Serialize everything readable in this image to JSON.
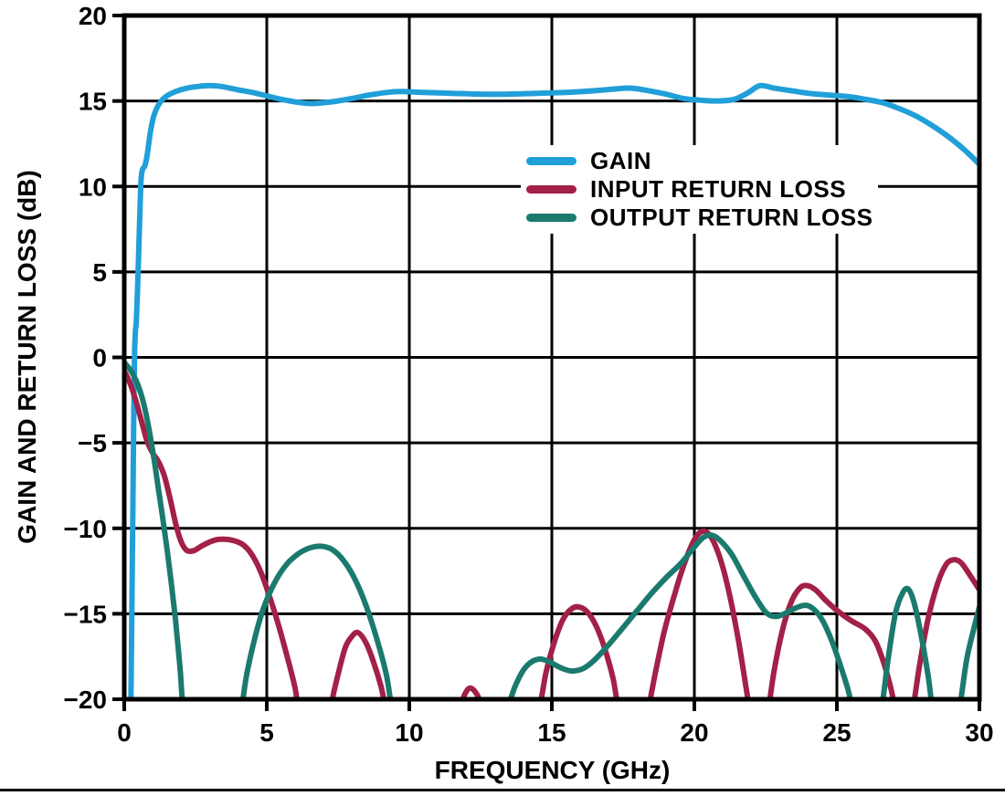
{
  "figure": {
    "background": "#ffffff",
    "footer_rule_color": "#000000",
    "text_color": "#000000"
  },
  "chart_data": {
    "type": "line",
    "title": "",
    "xlabel": "FREQUENCY (GHz)",
    "ylabel": "GAIN AND RETURN LOSS (dB)",
    "xlim": [
      0,
      30
    ],
    "ylim": [
      -20,
      20
    ],
    "xticks": [
      0,
      5,
      10,
      15,
      20,
      25,
      30
    ],
    "xtick_labels": [
      "0",
      "5",
      "10",
      "15",
      "20",
      "25",
      "30"
    ],
    "yticks": [
      20,
      15,
      10,
      5,
      0,
      -5,
      -10,
      -15,
      -20
    ],
    "ytick_labels": [
      "20",
      "15",
      "10",
      "5",
      "0",
      "−5",
      "−10",
      "−15",
      "−20"
    ],
    "grid": true,
    "grid_color": "#000000",
    "frame_color": "#000000",
    "legend_position": "upper-middle-inside",
    "series": [
      {
        "name": "GAIN",
        "color": "#219FD9",
        "points": [
          [
            0.22,
            -22
          ],
          [
            0.26,
            -16
          ],
          [
            0.3,
            -9
          ],
          [
            0.33,
            -4
          ],
          [
            0.36,
            0
          ],
          [
            0.39,
            1.5
          ],
          [
            0.42,
            2.0
          ],
          [
            0.45,
            3.2
          ],
          [
            0.5,
            5.8
          ],
          [
            0.55,
            8.6
          ],
          [
            0.59,
            10.4
          ],
          [
            0.64,
            11.0
          ],
          [
            0.72,
            11.2
          ],
          [
            0.8,
            11.8
          ],
          [
            0.92,
            13.2
          ],
          [
            1.05,
            14.2
          ],
          [
            1.25,
            14.9
          ],
          [
            1.5,
            15.3
          ],
          [
            1.8,
            15.55
          ],
          [
            2.2,
            15.75
          ],
          [
            2.6,
            15.85
          ],
          [
            3.0,
            15.9
          ],
          [
            3.4,
            15.85
          ],
          [
            4.0,
            15.65
          ],
          [
            4.5,
            15.5
          ],
          [
            5.0,
            15.3
          ],
          [
            5.5,
            15.1
          ],
          [
            6.0,
            14.95
          ],
          [
            6.5,
            14.85
          ],
          [
            7.0,
            14.9
          ],
          [
            7.5,
            15.0
          ],
          [
            8.0,
            15.15
          ],
          [
            8.6,
            15.35
          ],
          [
            9.2,
            15.5
          ],
          [
            9.7,
            15.55
          ],
          [
            10.5,
            15.5
          ],
          [
            11.5,
            15.45
          ],
          [
            12.5,
            15.4
          ],
          [
            13.5,
            15.4
          ],
          [
            14.5,
            15.45
          ],
          [
            15.5,
            15.5
          ],
          [
            16.5,
            15.6
          ],
          [
            17.2,
            15.7
          ],
          [
            17.8,
            15.75
          ],
          [
            18.4,
            15.6
          ],
          [
            19.0,
            15.4
          ],
          [
            19.6,
            15.15
          ],
          [
            20.2,
            15.05
          ],
          [
            20.8,
            15.0
          ],
          [
            21.4,
            15.1
          ],
          [
            21.9,
            15.5
          ],
          [
            22.3,
            15.9
          ],
          [
            22.8,
            15.75
          ],
          [
            23.4,
            15.6
          ],
          [
            24.0,
            15.45
          ],
          [
            24.7,
            15.35
          ],
          [
            25.4,
            15.25
          ],
          [
            26.0,
            15.1
          ],
          [
            26.6,
            14.9
          ],
          [
            27.2,
            14.55
          ],
          [
            27.8,
            14.1
          ],
          [
            28.4,
            13.5
          ],
          [
            29.0,
            12.8
          ],
          [
            29.5,
            12.1
          ],
          [
            30.0,
            11.3
          ]
        ]
      },
      {
        "name": "INPUT RETURN LOSS",
        "color": "#A32047",
        "points": [
          [
            0.0,
            -0.8
          ],
          [
            0.2,
            -1.5
          ],
          [
            0.4,
            -2.5
          ],
          [
            0.6,
            -3.7
          ],
          [
            0.8,
            -4.9
          ],
          [
            1.0,
            -5.6
          ],
          [
            1.2,
            -6.1
          ],
          [
            1.4,
            -6.9
          ],
          [
            1.6,
            -8.2
          ],
          [
            1.8,
            -9.7
          ],
          [
            2.0,
            -10.8
          ],
          [
            2.2,
            -11.3
          ],
          [
            2.45,
            -11.3
          ],
          [
            2.7,
            -11.05
          ],
          [
            3.0,
            -10.8
          ],
          [
            3.3,
            -10.65
          ],
          [
            3.6,
            -10.65
          ],
          [
            3.9,
            -10.75
          ],
          [
            4.2,
            -11.0
          ],
          [
            4.5,
            -11.6
          ],
          [
            4.8,
            -12.6
          ],
          [
            5.1,
            -14.0
          ],
          [
            5.4,
            -15.6
          ],
          [
            5.7,
            -17.4
          ],
          [
            6.0,
            -19.4
          ],
          [
            6.15,
            -21
          ],
          [
            6.6,
            -22
          ],
          [
            6.9,
            -22
          ],
          [
            7.15,
            -21
          ],
          [
            7.45,
            -18.9
          ],
          [
            7.75,
            -17.0
          ],
          [
            8.0,
            -16.3
          ],
          [
            8.2,
            -16.1
          ],
          [
            8.45,
            -16.6
          ],
          [
            8.7,
            -17.6
          ],
          [
            9.0,
            -19.2
          ],
          [
            9.3,
            -21.3
          ],
          [
            9.7,
            -22
          ],
          [
            11.3,
            -22
          ],
          [
            11.7,
            -20.8
          ],
          [
            11.95,
            -19.7
          ],
          [
            12.15,
            -19.35
          ],
          [
            12.4,
            -19.8
          ],
          [
            12.65,
            -20.9
          ],
          [
            13.0,
            -22
          ],
          [
            14.2,
            -22
          ],
          [
            14.55,
            -20.6
          ],
          [
            14.8,
            -18.4
          ],
          [
            15.1,
            -16.6
          ],
          [
            15.4,
            -15.3
          ],
          [
            15.7,
            -14.7
          ],
          [
            15.95,
            -14.6
          ],
          [
            16.25,
            -14.9
          ],
          [
            16.55,
            -15.7
          ],
          [
            16.85,
            -17.0
          ],
          [
            17.15,
            -18.8
          ],
          [
            17.4,
            -21
          ],
          [
            17.8,
            -22
          ],
          [
            18.1,
            -22
          ],
          [
            18.35,
            -20.8
          ],
          [
            18.65,
            -18.3
          ],
          [
            18.95,
            -16.0
          ],
          [
            19.3,
            -13.9
          ],
          [
            19.6,
            -12.3
          ],
          [
            19.9,
            -11.0
          ],
          [
            20.15,
            -10.3
          ],
          [
            20.4,
            -10.2
          ],
          [
            20.65,
            -10.7
          ],
          [
            20.95,
            -12.0
          ],
          [
            21.25,
            -14.0
          ],
          [
            21.55,
            -16.6
          ],
          [
            21.85,
            -19.7
          ],
          [
            22.0,
            -21.3
          ],
          [
            22.3,
            -22
          ],
          [
            22.55,
            -21
          ],
          [
            22.8,
            -18.3
          ],
          [
            23.1,
            -15.9
          ],
          [
            23.4,
            -14.3
          ],
          [
            23.7,
            -13.5
          ],
          [
            23.95,
            -13.35
          ],
          [
            24.25,
            -13.6
          ],
          [
            24.6,
            -14.2
          ],
          [
            25.0,
            -14.8
          ],
          [
            25.5,
            -15.4
          ],
          [
            26.0,
            -15.9
          ],
          [
            26.35,
            -16.6
          ],
          [
            26.65,
            -17.9
          ],
          [
            26.9,
            -19.4
          ],
          [
            27.1,
            -21
          ],
          [
            27.35,
            -22
          ],
          [
            27.6,
            -21.2
          ],
          [
            27.9,
            -18.0
          ],
          [
            28.2,
            -15.3
          ],
          [
            28.5,
            -13.4
          ],
          [
            28.8,
            -12.2
          ],
          [
            29.05,
            -11.85
          ],
          [
            29.35,
            -12.0
          ],
          [
            29.65,
            -12.7
          ],
          [
            30.0,
            -13.6
          ]
        ]
      },
      {
        "name": "OUTPUT RETURN LOSS",
        "color": "#1B7A6E",
        "points": [
          [
            0.0,
            -0.3
          ],
          [
            0.2,
            -0.7
          ],
          [
            0.4,
            -1.3
          ],
          [
            0.6,
            -2.2
          ],
          [
            0.75,
            -3.2
          ],
          [
            0.9,
            -4.5
          ],
          [
            1.05,
            -6.0
          ],
          [
            1.2,
            -7.7
          ],
          [
            1.35,
            -9.4
          ],
          [
            1.5,
            -11.2
          ],
          [
            1.65,
            -13.2
          ],
          [
            1.8,
            -15.4
          ],
          [
            1.95,
            -18.0
          ],
          [
            2.1,
            -21
          ],
          [
            2.4,
            -22
          ],
          [
            3.7,
            -22
          ],
          [
            4.05,
            -21
          ],
          [
            4.3,
            -18.5
          ],
          [
            4.6,
            -16.3
          ],
          [
            4.9,
            -14.6
          ],
          [
            5.3,
            -13.1
          ],
          [
            5.7,
            -12.1
          ],
          [
            6.1,
            -11.5
          ],
          [
            6.5,
            -11.15
          ],
          [
            6.9,
            -11.05
          ],
          [
            7.3,
            -11.25
          ],
          [
            7.7,
            -11.9
          ],
          [
            8.1,
            -13.0
          ],
          [
            8.5,
            -14.6
          ],
          [
            8.9,
            -16.7
          ],
          [
            9.2,
            -18.6
          ],
          [
            9.45,
            -21
          ],
          [
            9.8,
            -22
          ],
          [
            13.0,
            -22
          ],
          [
            13.4,
            -20.7
          ],
          [
            13.7,
            -19.3
          ],
          [
            14.0,
            -18.3
          ],
          [
            14.3,
            -17.8
          ],
          [
            14.6,
            -17.65
          ],
          [
            14.9,
            -17.8
          ],
          [
            15.3,
            -18.15
          ],
          [
            15.7,
            -18.35
          ],
          [
            16.1,
            -18.2
          ],
          [
            16.5,
            -17.7
          ],
          [
            17.0,
            -16.8
          ],
          [
            17.5,
            -15.8
          ],
          [
            18.0,
            -14.8
          ],
          [
            18.5,
            -13.8
          ],
          [
            19.0,
            -12.9
          ],
          [
            19.5,
            -12.1
          ],
          [
            20.0,
            -11.1
          ],
          [
            20.3,
            -10.55
          ],
          [
            20.6,
            -10.4
          ],
          [
            20.9,
            -10.7
          ],
          [
            21.3,
            -11.5
          ],
          [
            21.7,
            -12.7
          ],
          [
            22.1,
            -13.9
          ],
          [
            22.5,
            -14.9
          ],
          [
            22.8,
            -15.15
          ],
          [
            23.1,
            -15.05
          ],
          [
            23.5,
            -14.7
          ],
          [
            23.9,
            -14.5
          ],
          [
            24.2,
            -14.75
          ],
          [
            24.5,
            -15.4
          ],
          [
            24.8,
            -16.5
          ],
          [
            25.1,
            -17.9
          ],
          [
            25.4,
            -19.5
          ],
          [
            25.6,
            -21
          ],
          [
            25.9,
            -22
          ],
          [
            26.3,
            -22
          ],
          [
            26.55,
            -20.7
          ],
          [
            26.8,
            -17.6
          ],
          [
            27.05,
            -15.0
          ],
          [
            27.3,
            -13.8
          ],
          [
            27.5,
            -13.55
          ],
          [
            27.7,
            -14.3
          ],
          [
            27.95,
            -16.2
          ],
          [
            28.2,
            -18.6
          ],
          [
            28.4,
            -21
          ],
          [
            28.7,
            -22
          ],
          [
            29.05,
            -22
          ],
          [
            29.3,
            -20.5
          ],
          [
            29.55,
            -17.7
          ],
          [
            29.8,
            -15.9
          ],
          [
            30.0,
            -14.6
          ]
        ]
      }
    ]
  }
}
